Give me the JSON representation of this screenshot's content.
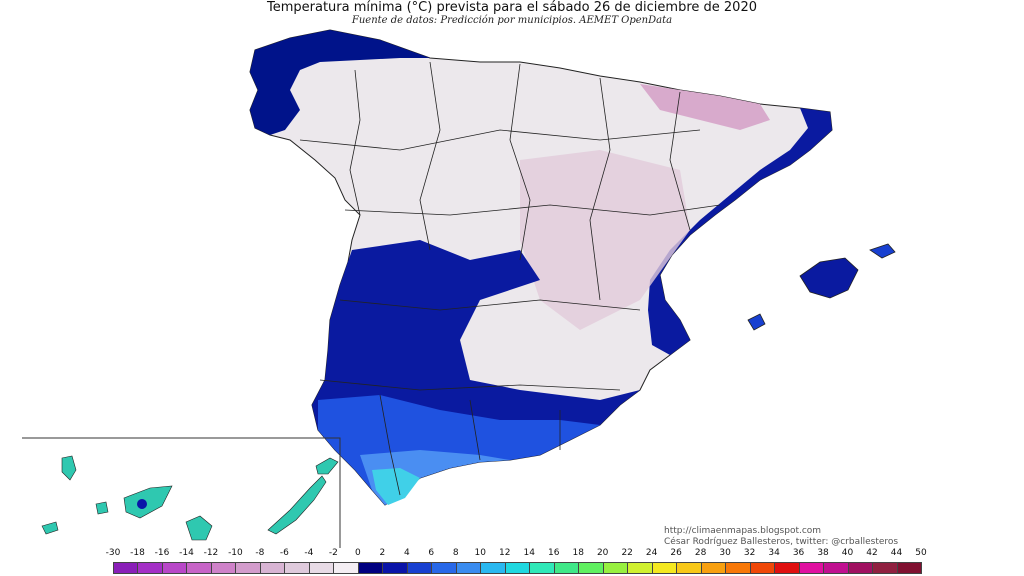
{
  "title": "Temperatura mínima (°C) prevista para el sábado 26 de diciembre de 2020",
  "subtitle": "Fuente de datos: Predicción por municipios. AEMET OpenData",
  "credits": {
    "line1": "http://climaenmapas.blogspot.com",
    "line2": "César Rodríguez Ballesteros, twitter: @crballesteros"
  },
  "legend": {
    "labels": [
      "-30",
      "-18",
      "-16",
      "-14",
      "-12",
      "-10",
      "-8",
      "-6",
      "-4",
      "-2",
      "0",
      "2",
      "4",
      "6",
      "8",
      "10",
      "12",
      "14",
      "16",
      "18",
      "20",
      "22",
      "24",
      "26",
      "28",
      "30",
      "32",
      "34",
      "36",
      "38",
      "40",
      "42",
      "44",
      "50"
    ],
    "colors": [
      "#8a1fb8",
      "#a42fc6",
      "#b847c8",
      "#c764c7",
      "#cf82c9",
      "#d39ccc",
      "#d8b4d3",
      "#dfcadc",
      "#e8dbe6",
      "#f4eef3",
      "#000080",
      "#0a14a8",
      "#1840d0",
      "#2868e8",
      "#3a8cf0",
      "#2ab8f0",
      "#20d8e0",
      "#30e8b8",
      "#40e888",
      "#60f060",
      "#98f040",
      "#d0f030",
      "#f4e820",
      "#f8c818",
      "#f8a010",
      "#f87808",
      "#f04808",
      "#e01010",
      "#e010a0",
      "#c01090",
      "#a01060",
      "#902040",
      "#801030"
    ]
  },
  "regions": {
    "peninsula": "#ece8ec",
    "northeast_pyrenees": "#d8aacc",
    "interior_pink": "#e2cadb",
    "cold_west": "#0a1aa0",
    "cold_coast_north": "#00138a",
    "south_blue": "#1f52e0",
    "south_light": "#4a8ef2",
    "coast_cyan": "#40d0e8",
    "canarias_teal": "#2fc8b0",
    "border_color": "#222222",
    "inset_frame": "#333333"
  }
}
